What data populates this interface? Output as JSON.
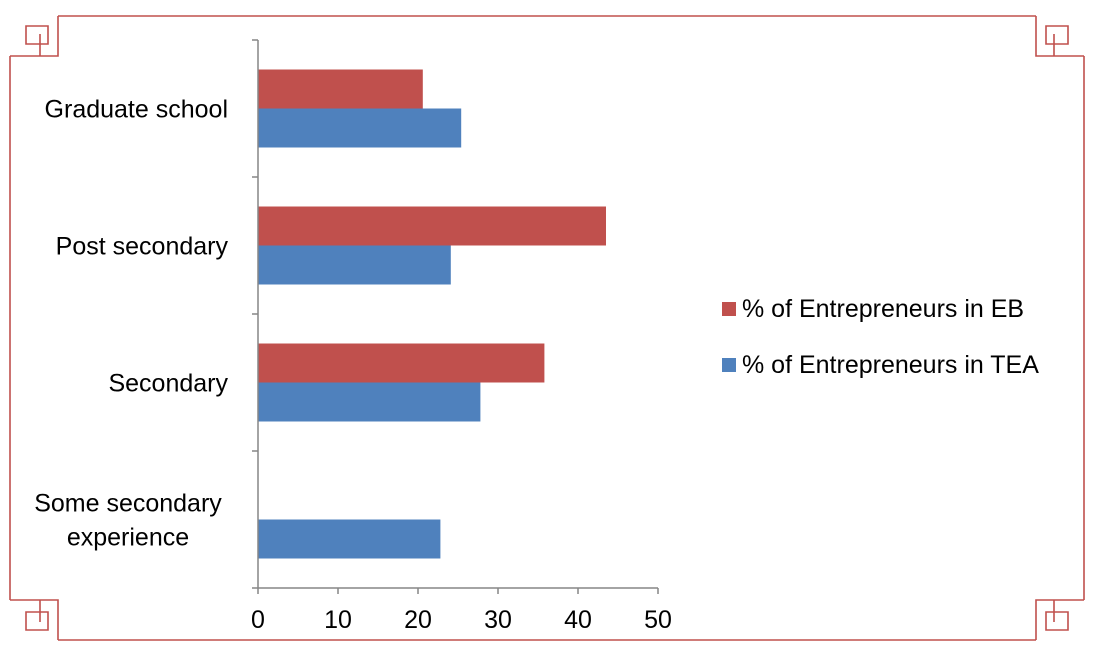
{
  "chart_data": {
    "type": "bar",
    "orientation": "horizontal",
    "categories": [
      [
        "Graduate school"
      ],
      [
        "Post secondary"
      ],
      [
        "Secondary"
      ],
      [
        "Some secondary",
        "experience"
      ]
    ],
    "series": [
      {
        "name": "% of Entrepreneurs in EB",
        "color": "#C0504D",
        "values": [
          20.6,
          43.5,
          35.8,
          0
        ]
      },
      {
        "name": "% of Entrepreneurs in TEA",
        "color": "#4F81BD",
        "values": [
          25.4,
          24.1,
          27.8,
          22.8
        ]
      }
    ],
    "x_ticks": [
      "0",
      "10",
      "20",
      "30",
      "40",
      "50"
    ],
    "xlim": [
      0,
      50
    ],
    "grid": false,
    "legend_position": "right"
  },
  "colors": {
    "frame": "#C0504D",
    "axis": "#868686"
  }
}
